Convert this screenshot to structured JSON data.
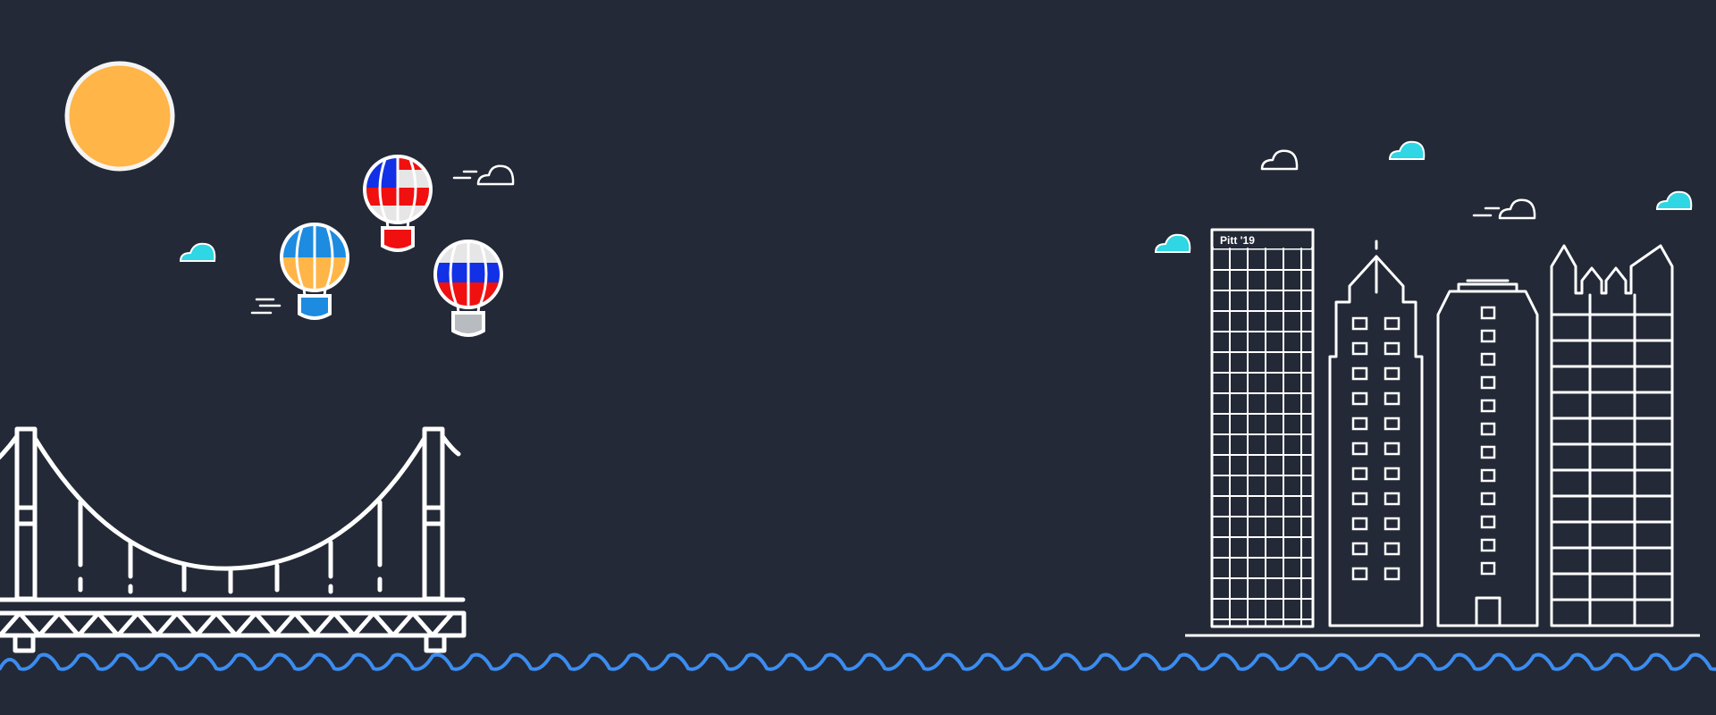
{
  "scene": {
    "background": "#232936",
    "line_color": "#ffffff",
    "sun_color": "#FFB547",
    "water_color": "#3B8CF0",
    "accent_cloud_color": "#2FD6E3"
  },
  "building_sign": {
    "text": "Pitt '19"
  },
  "balloons": [
    {
      "name": "orange-blue-balloon",
      "top": "#1D8BE0",
      "bottom": "#FFB547",
      "basket": "#1D8BE0"
    },
    {
      "name": "blue-red-balloon",
      "top_left": "#1230E6",
      "top_right": "#F01010",
      "bottom": "#F01010",
      "basket": "#F01010"
    },
    {
      "name": "white-blue-red-balloon",
      "top": "#E6E6E6",
      "middle": "#1230E6",
      "bottom": "#F01010",
      "basket": "#B8BBC0"
    }
  ],
  "icons": [
    "sun-icon",
    "hot-air-balloon-icon",
    "cloud-icon",
    "suspension-bridge-icon",
    "skyscraper-icon",
    "water-wave-icon"
  ]
}
